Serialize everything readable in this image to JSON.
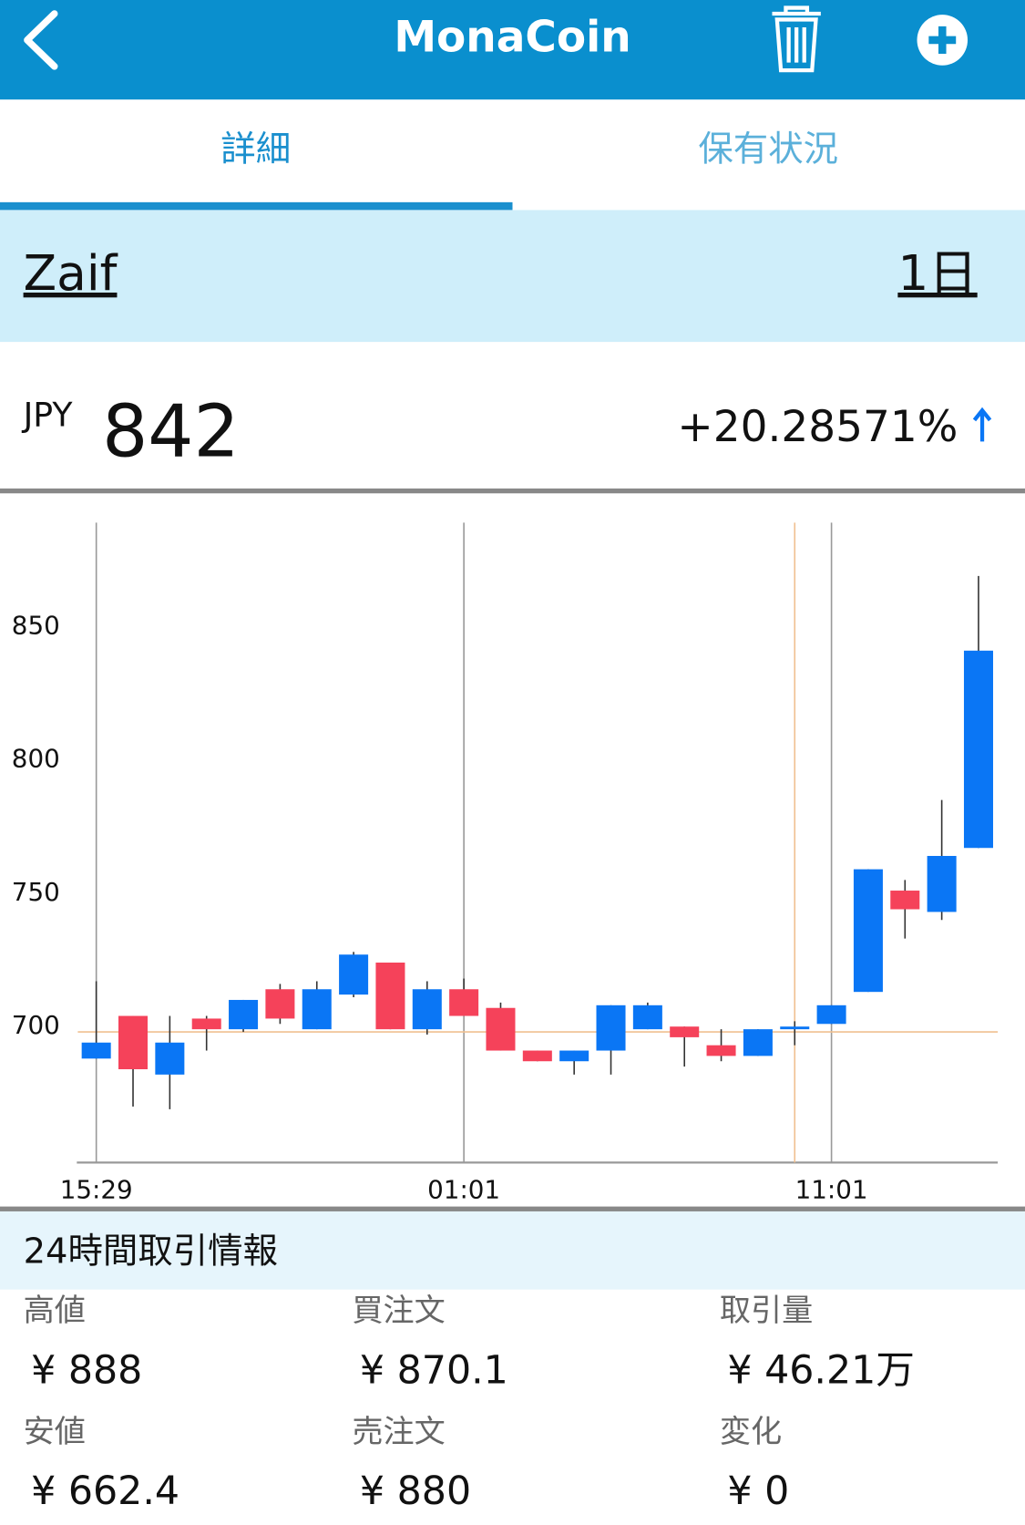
{
  "header": {
    "title": "MonaCoin"
  },
  "tabs": [
    "詳細",
    "保有状況"
  ],
  "exchange": {
    "name": "Zaif",
    "period": "1日"
  },
  "price": {
    "currency": "JPY",
    "value": "842",
    "change": "+20.28571%"
  },
  "chart_data": {
    "type": "candlestick",
    "categories": [
      "15:29",
      null,
      null,
      null,
      null,
      null,
      null,
      null,
      null,
      null,
      "01:01",
      null,
      null,
      null,
      null,
      null,
      null,
      null,
      null,
      null,
      "11:01",
      null,
      null,
      null,
      null
    ],
    "open": [
      688,
      704,
      682,
      703,
      699,
      714,
      699,
      712,
      724,
      699,
      714,
      707,
      691,
      687,
      691,
      699,
      700,
      693,
      689,
      699,
      701,
      713,
      751,
      743,
      767
    ],
    "high": [
      717,
      704,
      704,
      704,
      710,
      716,
      717,
      728,
      724,
      717,
      718,
      709,
      691,
      691,
      708,
      709,
      700,
      699,
      699,
      702,
      708,
      759,
      755,
      785,
      869
    ],
    "low": [
      688,
      670,
      669,
      691,
      698,
      701,
      699,
      711,
      699,
      697,
      704,
      691,
      687,
      682,
      682,
      699,
      685,
      687,
      689,
      693,
      701,
      713,
      733,
      740,
      767
    ],
    "close": [
      694,
      684,
      694,
      699,
      710,
      703,
      714,
      727,
      699,
      714,
      704,
      691,
      687,
      691,
      708,
      708,
      696,
      689,
      699,
      700,
      708,
      759,
      744,
      764,
      841
    ],
    "up_color": "#0a76f5",
    "down_color": "#f5425a",
    "ylim": [
      649,
      889
    ],
    "yticks": [
      700,
      750,
      800,
      850
    ],
    "crosshair": {
      "index": 19,
      "value": 698
    }
  },
  "info": {
    "title": "24時間取引情報",
    "items": [
      {
        "label": "高値",
        "value": "¥ 888"
      },
      {
        "label": "買注文",
        "value": "¥ 870.1"
      },
      {
        "label": "取引量",
        "value": "¥ 46.21万"
      },
      {
        "label": "安値",
        "value": "¥ 662.4"
      },
      {
        "label": "売注文",
        "value": "¥ 880"
      },
      {
        "label": "変化",
        "value": "¥ 0"
      }
    ]
  }
}
